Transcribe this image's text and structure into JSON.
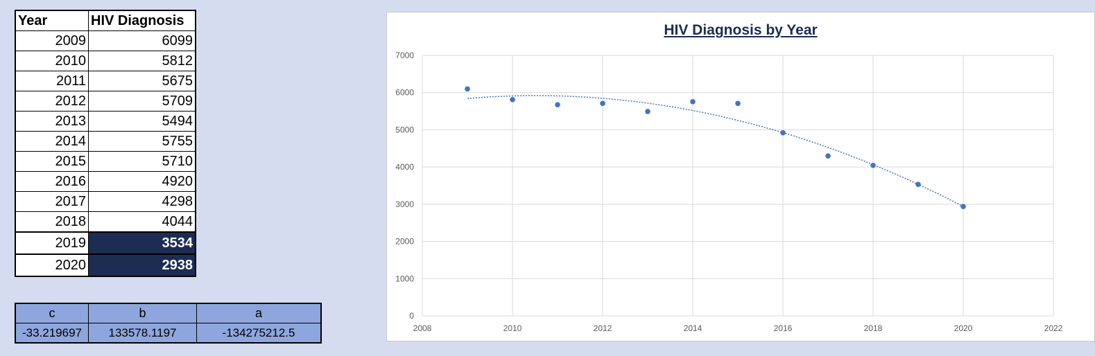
{
  "table": {
    "headers": [
      "Year",
      "HIV Diagnosis"
    ],
    "rows": [
      {
        "year": "2009",
        "value": "6099"
      },
      {
        "year": "2010",
        "value": "5812"
      },
      {
        "year": "2011",
        "value": "5675"
      },
      {
        "year": "2012",
        "value": "5709"
      },
      {
        "year": "2013",
        "value": "5494"
      },
      {
        "year": "2014",
        "value": "5755"
      },
      {
        "year": "2015",
        "value": "5710"
      },
      {
        "year": "2016",
        "value": "4920"
      },
      {
        "year": "2017",
        "value": "4298"
      },
      {
        "year": "2018",
        "value": "4044"
      },
      {
        "year": "2019",
        "value": "3534"
      },
      {
        "year": "2020",
        "value": "2938"
      }
    ]
  },
  "coefficients": {
    "headers": [
      "c",
      "b",
      "a"
    ],
    "values": [
      "-33.219697",
      "133578.1197",
      "-134275212.5"
    ]
  },
  "colors": {
    "background": "#d5dcef",
    "highlight": "#1d2c52",
    "coef_fill": "#8ea6dd",
    "point": "#4472c4",
    "title": "#1d2c52"
  },
  "chart_data": {
    "type": "scatter",
    "title": "HIV Diagnosis by Year",
    "xlabel": "",
    "ylabel": "",
    "x": [
      2009,
      2010,
      2011,
      2012,
      2013,
      2014,
      2015,
      2016,
      2017,
      2018,
      2019,
      2020
    ],
    "y": [
      6099,
      5812,
      5675,
      5709,
      5494,
      5755,
      5710,
      4920,
      4298,
      4044,
      3534,
      2938
    ],
    "xlim": [
      2008,
      2022
    ],
    "ylim": [
      0,
      7000
    ],
    "x_ticks": [
      "2008",
      "2010",
      "2012",
      "2014",
      "2016",
      "2018",
      "2020",
      "2022"
    ],
    "y_ticks": [
      "0",
      "1000",
      "2000",
      "3000",
      "4000",
      "5000",
      "6000",
      "7000"
    ],
    "trendline": "polynomial order 2 (dotted)",
    "grid": true,
    "legend": "none"
  }
}
